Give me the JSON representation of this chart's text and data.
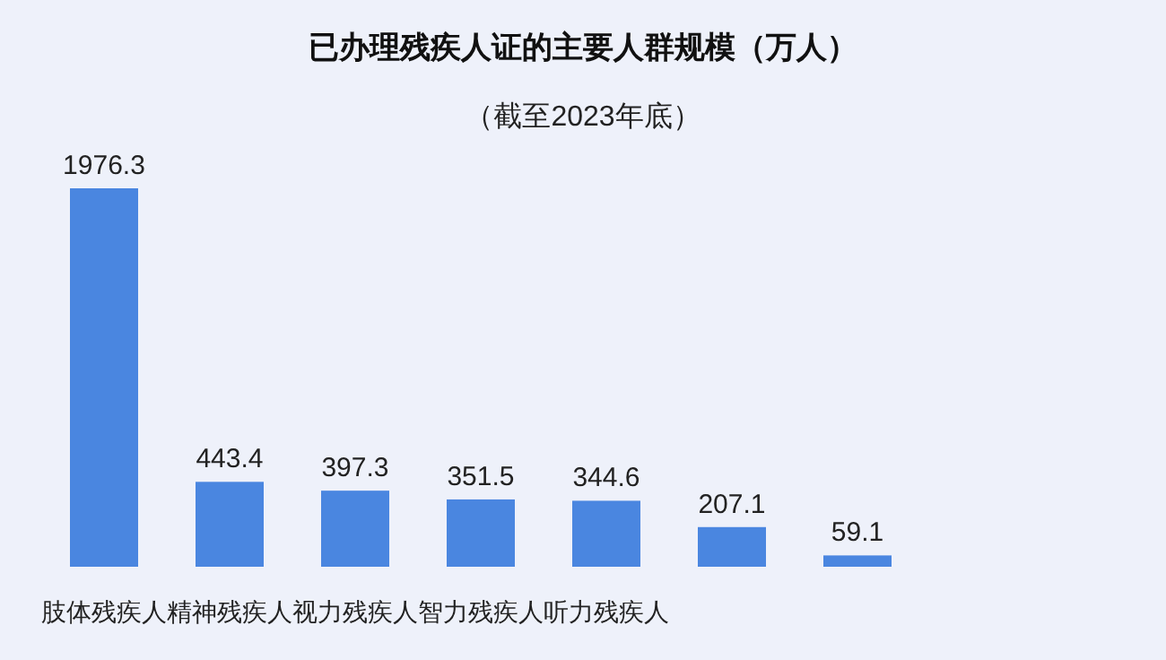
{
  "chart_data": {
    "type": "bar",
    "title": "已办理残疾人证的主要人群规模（万人）",
    "subtitle": "（截至2023年底）",
    "categories": [
      "肢体残疾人",
      "精神残疾人",
      "视力残疾人",
      "智力残疾人",
      "听力残疾人",
      null,
      null
    ],
    "values": [
      1976.3,
      443.4,
      397.3,
      351.5,
      344.6,
      207.1,
      59.1
    ],
    "color": "#4a86e0",
    "data_labels": true
  }
}
